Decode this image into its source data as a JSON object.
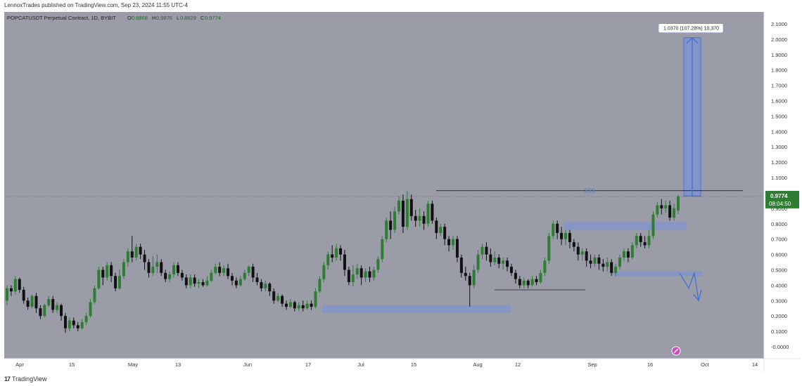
{
  "header": {
    "publish_line": "LennoxTrades published on TradingView.com, Sep 23, 2024 11:55 UTC-4"
  },
  "legend": {
    "symbol": "POPCATUSDT Perpetual Contract, 1D, BYBIT",
    "o_label": "O",
    "o_value": "0.8868",
    "h_label": "H",
    "h_value": "0.9876",
    "l_label": "L",
    "l_value": "0.8629",
    "c_label": "C",
    "c_value": "0.9774"
  },
  "footer": {
    "brand": "TradingView"
  },
  "colors": {
    "background": "#9a9ca7",
    "up_candle": "#2f7d32",
    "down_candle": "#111111",
    "zone": "#7e93cf",
    "price_label_bg": "#2f7d32",
    "measure_blue": "#3b6fd6"
  },
  "chart_data": {
    "type": "candlestick",
    "ylim": [
      -0.05,
      2.15
    ],
    "y_ticks": [
      "2.1000",
      "2.0000",
      "1.9000",
      "1.8000",
      "1.7000",
      "1.6000",
      "1.5000",
      "1.4000",
      "1.3000",
      "1.2000",
      "1.1000",
      "1.0000",
      "0.9000",
      "0.8000",
      "0.7000",
      "0.6000",
      "0.5000",
      "0.4000",
      "0.3000",
      "0.2000",
      "0.1000",
      "-0.0000"
    ],
    "x_labels": [
      "Apr",
      "15",
      "May",
      "13",
      "Jun",
      "17",
      "Jul",
      "15",
      "Aug",
      "12",
      "Sep",
      "16",
      "Oct",
      "14"
    ],
    "last_price": "0.9774",
    "countdown": "08:04:50",
    "annotations": {
      "sss_label": "SSS",
      "sss_level": 1.015,
      "measure_label": "1.0370 (107.28%) 10,370",
      "measure_from": 0.98,
      "measure_to": 2.01,
      "demand_zones": [
        {
          "y_top": 0.27,
          "y_bottom": 0.22
        },
        {
          "y_top": 0.81,
          "y_bottom": 0.76
        },
        {
          "y_top": 0.49,
          "y_bottom": 0.46
        }
      ],
      "support_line": 0.37
    },
    "candles": [
      [
        0.3,
        0.38,
        0.27,
        0.4
      ],
      [
        0.38,
        0.36,
        0.33,
        0.4
      ],
      [
        0.36,
        0.44,
        0.34,
        0.46
      ],
      [
        0.44,
        0.37,
        0.35,
        0.45
      ],
      [
        0.37,
        0.3,
        0.28,
        0.39
      ],
      [
        0.3,
        0.26,
        0.24,
        0.32
      ],
      [
        0.26,
        0.33,
        0.25,
        0.34
      ],
      [
        0.33,
        0.25,
        0.22,
        0.35
      ],
      [
        0.25,
        0.2,
        0.18,
        0.27
      ],
      [
        0.2,
        0.27,
        0.19,
        0.28
      ],
      [
        0.27,
        0.31,
        0.26,
        0.33
      ],
      [
        0.31,
        0.24,
        0.22,
        0.33
      ],
      [
        0.24,
        0.27,
        0.22,
        0.29
      ],
      [
        0.27,
        0.2,
        0.17,
        0.28
      ],
      [
        0.2,
        0.12,
        0.09,
        0.22
      ],
      [
        0.12,
        0.17,
        0.1,
        0.19
      ],
      [
        0.17,
        0.14,
        0.12,
        0.19
      ],
      [
        0.14,
        0.12,
        0.1,
        0.16
      ],
      [
        0.12,
        0.16,
        0.11,
        0.18
      ],
      [
        0.16,
        0.2,
        0.14,
        0.22
      ],
      [
        0.2,
        0.29,
        0.19,
        0.31
      ],
      [
        0.29,
        0.38,
        0.28,
        0.4
      ],
      [
        0.38,
        0.5,
        0.37,
        0.52
      ],
      [
        0.5,
        0.45,
        0.4,
        0.52
      ],
      [
        0.45,
        0.53,
        0.43,
        0.55
      ],
      [
        0.53,
        0.46,
        0.42,
        0.55
      ],
      [
        0.46,
        0.38,
        0.36,
        0.48
      ],
      [
        0.38,
        0.46,
        0.37,
        0.5
      ],
      [
        0.46,
        0.55,
        0.44,
        0.57
      ],
      [
        0.55,
        0.62,
        0.52,
        0.64
      ],
      [
        0.62,
        0.58,
        0.55,
        0.72
      ],
      [
        0.58,
        0.65,
        0.56,
        0.67
      ],
      [
        0.65,
        0.6,
        0.57,
        0.67
      ],
      [
        0.6,
        0.55,
        0.5,
        0.63
      ],
      [
        0.55,
        0.48,
        0.45,
        0.57
      ],
      [
        0.48,
        0.52,
        0.46,
        0.59
      ],
      [
        0.52,
        0.55,
        0.48,
        0.6
      ],
      [
        0.55,
        0.48,
        0.46,
        0.57
      ],
      [
        0.48,
        0.44,
        0.42,
        0.5
      ],
      [
        0.44,
        0.47,
        0.42,
        0.49
      ],
      [
        0.47,
        0.53,
        0.45,
        0.55
      ],
      [
        0.53,
        0.48,
        0.46,
        0.55
      ],
      [
        0.48,
        0.45,
        0.43,
        0.5
      ],
      [
        0.45,
        0.4,
        0.38,
        0.47
      ],
      [
        0.4,
        0.45,
        0.38,
        0.47
      ],
      [
        0.45,
        0.41,
        0.39,
        0.47
      ],
      [
        0.41,
        0.42,
        0.38,
        0.44
      ],
      [
        0.42,
        0.4,
        0.39,
        0.44
      ],
      [
        0.4,
        0.43,
        0.39,
        0.46
      ],
      [
        0.43,
        0.48,
        0.42,
        0.5
      ],
      [
        0.48,
        0.52,
        0.47,
        0.54
      ],
      [
        0.52,
        0.48,
        0.46,
        0.55
      ],
      [
        0.48,
        0.51,
        0.46,
        0.53
      ],
      [
        0.51,
        0.46,
        0.44,
        0.54
      ],
      [
        0.46,
        0.43,
        0.4,
        0.48
      ],
      [
        0.43,
        0.4,
        0.38,
        0.45
      ],
      [
        0.4,
        0.44,
        0.39,
        0.46
      ],
      [
        0.44,
        0.48,
        0.43,
        0.5
      ],
      [
        0.48,
        0.52,
        0.46,
        0.53
      ],
      [
        0.52,
        0.45,
        0.42,
        0.54
      ],
      [
        0.45,
        0.42,
        0.4,
        0.48
      ],
      [
        0.42,
        0.38,
        0.36,
        0.44
      ],
      [
        0.38,
        0.41,
        0.36,
        0.43
      ],
      [
        0.41,
        0.36,
        0.33,
        0.42
      ],
      [
        0.36,
        0.3,
        0.28,
        0.38
      ],
      [
        0.3,
        0.33,
        0.29,
        0.35
      ],
      [
        0.33,
        0.28,
        0.26,
        0.34
      ],
      [
        0.28,
        0.26,
        0.24,
        0.3
      ],
      [
        0.26,
        0.29,
        0.25,
        0.31
      ],
      [
        0.29,
        0.25,
        0.23,
        0.3
      ],
      [
        0.25,
        0.27,
        0.23,
        0.29
      ],
      [
        0.27,
        0.25,
        0.23,
        0.3
      ],
      [
        0.25,
        0.28,
        0.24,
        0.3
      ],
      [
        0.28,
        0.26,
        0.24,
        0.3
      ],
      [
        0.26,
        0.36,
        0.25,
        0.38
      ],
      [
        0.36,
        0.44,
        0.35,
        0.46
      ],
      [
        0.44,
        0.53,
        0.42,
        0.55
      ],
      [
        0.53,
        0.6,
        0.5,
        0.62
      ],
      [
        0.6,
        0.58,
        0.55,
        0.66
      ],
      [
        0.58,
        0.64,
        0.56,
        0.67
      ],
      [
        0.64,
        0.6,
        0.56,
        0.66
      ],
      [
        0.6,
        0.5,
        0.46,
        0.63
      ],
      [
        0.5,
        0.42,
        0.4,
        0.52
      ],
      [
        0.42,
        0.47,
        0.39,
        0.53
      ],
      [
        0.47,
        0.51,
        0.44,
        0.54
      ],
      [
        0.51,
        0.45,
        0.4,
        0.53
      ],
      [
        0.45,
        0.49,
        0.42,
        0.51
      ],
      [
        0.49,
        0.45,
        0.42,
        0.52
      ],
      [
        0.45,
        0.5,
        0.43,
        0.52
      ],
      [
        0.5,
        0.57,
        0.48,
        0.59
      ],
      [
        0.57,
        0.7,
        0.55,
        0.72
      ],
      [
        0.7,
        0.82,
        0.68,
        0.84
      ],
      [
        0.82,
        0.76,
        0.7,
        0.88
      ],
      [
        0.76,
        0.88,
        0.74,
        0.91
      ],
      [
        0.88,
        0.95,
        0.86,
        0.98
      ],
      [
        0.95,
        0.78,
        0.74,
        0.99
      ],
      [
        0.78,
        0.96,
        0.76,
        1.01
      ],
      [
        0.96,
        0.85,
        0.82,
        0.99
      ],
      [
        0.85,
        0.82,
        0.78,
        0.89
      ],
      [
        0.82,
        0.85,
        0.78,
        0.9
      ],
      [
        0.85,
        0.8,
        0.76,
        0.88
      ],
      [
        0.8,
        0.93,
        0.78,
        0.95
      ],
      [
        0.93,
        0.82,
        0.8,
        0.95
      ],
      [
        0.82,
        0.74,
        0.7,
        0.84
      ],
      [
        0.74,
        0.78,
        0.72,
        0.8
      ],
      [
        0.78,
        0.7,
        0.66,
        0.8
      ],
      [
        0.7,
        0.66,
        0.62,
        0.72
      ],
      [
        0.66,
        0.7,
        0.63,
        0.72
      ],
      [
        0.7,
        0.58,
        0.55,
        0.72
      ],
      [
        0.58,
        0.48,
        0.45,
        0.6
      ],
      [
        0.48,
        0.46,
        0.43,
        0.52
      ],
      [
        0.46,
        0.4,
        0.26,
        0.48
      ],
      [
        0.4,
        0.5,
        0.38,
        0.53
      ],
      [
        0.5,
        0.6,
        0.48,
        0.63
      ],
      [
        0.6,
        0.65,
        0.57,
        0.67
      ],
      [
        0.65,
        0.6,
        0.56,
        0.68
      ],
      [
        0.6,
        0.55,
        0.52,
        0.64
      ],
      [
        0.55,
        0.58,
        0.53,
        0.62
      ],
      [
        0.58,
        0.54,
        0.51,
        0.6
      ],
      [
        0.54,
        0.56,
        0.5,
        0.58
      ],
      [
        0.56,
        0.52,
        0.49,
        0.58
      ],
      [
        0.52,
        0.48,
        0.46,
        0.54
      ],
      [
        0.48,
        0.44,
        0.41,
        0.5
      ],
      [
        0.44,
        0.4,
        0.38,
        0.46
      ],
      [
        0.4,
        0.43,
        0.38,
        0.45
      ],
      [
        0.43,
        0.4,
        0.38,
        0.44
      ],
      [
        0.4,
        0.44,
        0.39,
        0.46
      ],
      [
        0.44,
        0.42,
        0.4,
        0.46
      ],
      [
        0.42,
        0.48,
        0.41,
        0.5
      ],
      [
        0.48,
        0.56,
        0.46,
        0.58
      ],
      [
        0.56,
        0.72,
        0.54,
        0.74
      ],
      [
        0.72,
        0.8,
        0.7,
        0.82
      ],
      [
        0.8,
        0.74,
        0.7,
        0.82
      ],
      [
        0.74,
        0.7,
        0.66,
        0.78
      ],
      [
        0.7,
        0.74,
        0.66,
        0.76
      ],
      [
        0.74,
        0.68,
        0.64,
        0.76
      ],
      [
        0.68,
        0.65,
        0.62,
        0.7
      ],
      [
        0.65,
        0.6,
        0.56,
        0.68
      ],
      [
        0.6,
        0.62,
        0.56,
        0.64
      ],
      [
        0.62,
        0.56,
        0.52,
        0.64
      ],
      [
        0.56,
        0.54,
        0.51,
        0.6
      ],
      [
        0.54,
        0.58,
        0.52,
        0.6
      ],
      [
        0.58,
        0.54,
        0.5,
        0.6
      ],
      [
        0.54,
        0.52,
        0.49,
        0.57
      ],
      [
        0.52,
        0.55,
        0.49,
        0.58
      ],
      [
        0.55,
        0.48,
        0.46,
        0.57
      ],
      [
        0.48,
        0.52,
        0.46,
        0.54
      ],
      [
        0.52,
        0.58,
        0.5,
        0.6
      ],
      [
        0.58,
        0.62,
        0.56,
        0.64
      ],
      [
        0.62,
        0.58,
        0.55,
        0.64
      ],
      [
        0.58,
        0.66,
        0.57,
        0.68
      ],
      [
        0.66,
        0.72,
        0.64,
        0.74
      ],
      [
        0.72,
        0.68,
        0.65,
        0.74
      ],
      [
        0.68,
        0.66,
        0.64,
        0.72
      ],
      [
        0.66,
        0.72,
        0.64,
        0.76
      ],
      [
        0.72,
        0.86,
        0.7,
        0.88
      ],
      [
        0.86,
        0.92,
        0.84,
        0.94
      ],
      [
        0.92,
        0.9,
        0.86,
        0.96
      ],
      [
        0.9,
        0.92,
        0.87,
        0.95
      ],
      [
        0.92,
        0.84,
        0.82,
        0.95
      ],
      [
        0.84,
        0.9,
        0.82,
        0.93
      ],
      [
        0.8868,
        0.9774,
        0.8629,
        0.9876
      ]
    ]
  }
}
